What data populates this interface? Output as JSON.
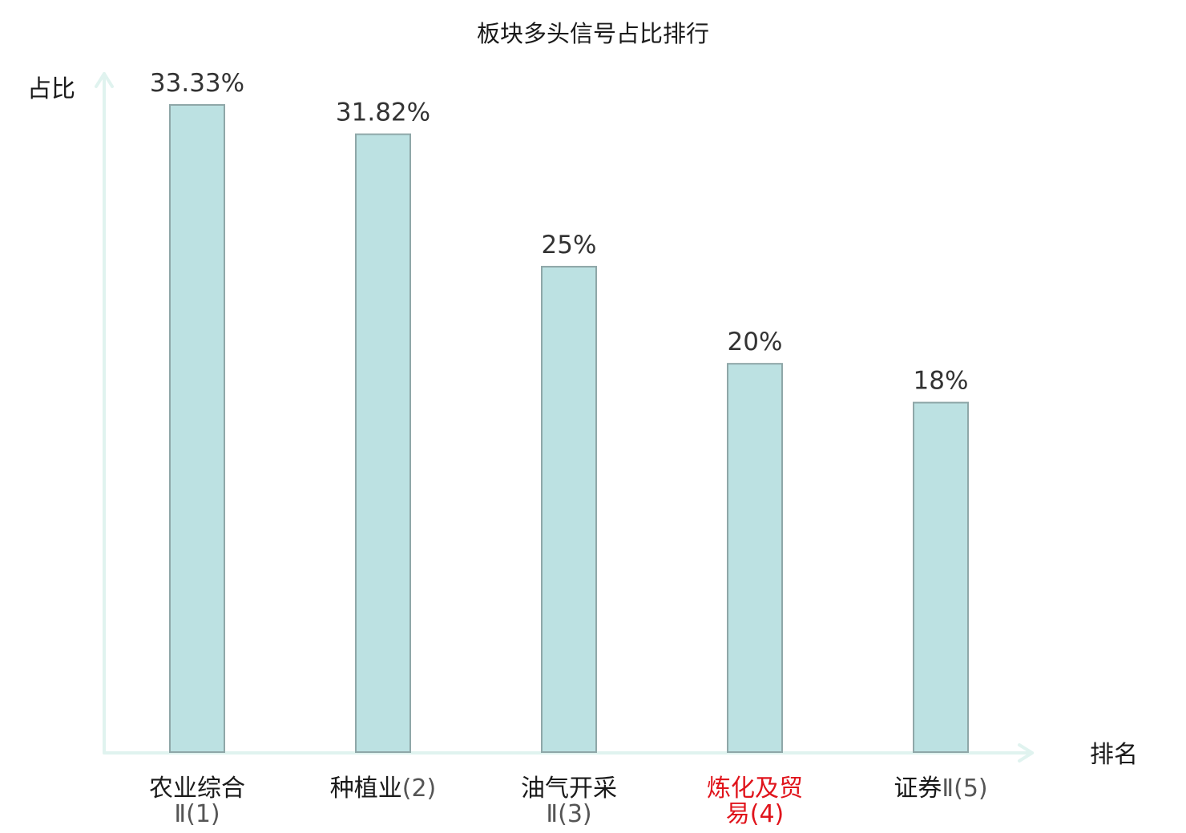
{
  "chart_data": {
    "type": "bar",
    "title": "板块多头信号占比排行",
    "ylabel": "占比",
    "xlabel": "排名",
    "ylim": [
      0,
      35
    ],
    "grid": false,
    "categories": [
      {
        "name": "农业综合",
        "suffix": "Ⅱ(1)",
        "highlight": false
      },
      {
        "name": "种植业",
        "suffix": "(2)",
        "highlight": false
      },
      {
        "name": "油气开采",
        "suffix": "Ⅱ(3)",
        "highlight": false
      },
      {
        "name": "炼化及贸",
        "suffix": "易(4)",
        "highlight": true
      },
      {
        "name": "证券",
        "suffix": "Ⅱ(5)",
        "highlight": false
      }
    ],
    "values": [
      33.33,
      31.82,
      25,
      20,
      18
    ],
    "value_labels": [
      "33.33%",
      "31.82%",
      "25%",
      "20%",
      "18%"
    ],
    "colors": {
      "bar_fill": "#bce1e2",
      "bar_stroke": "#8fa7a8",
      "axis": "#e0f3ef",
      "highlight_label": "#e0141c"
    }
  }
}
